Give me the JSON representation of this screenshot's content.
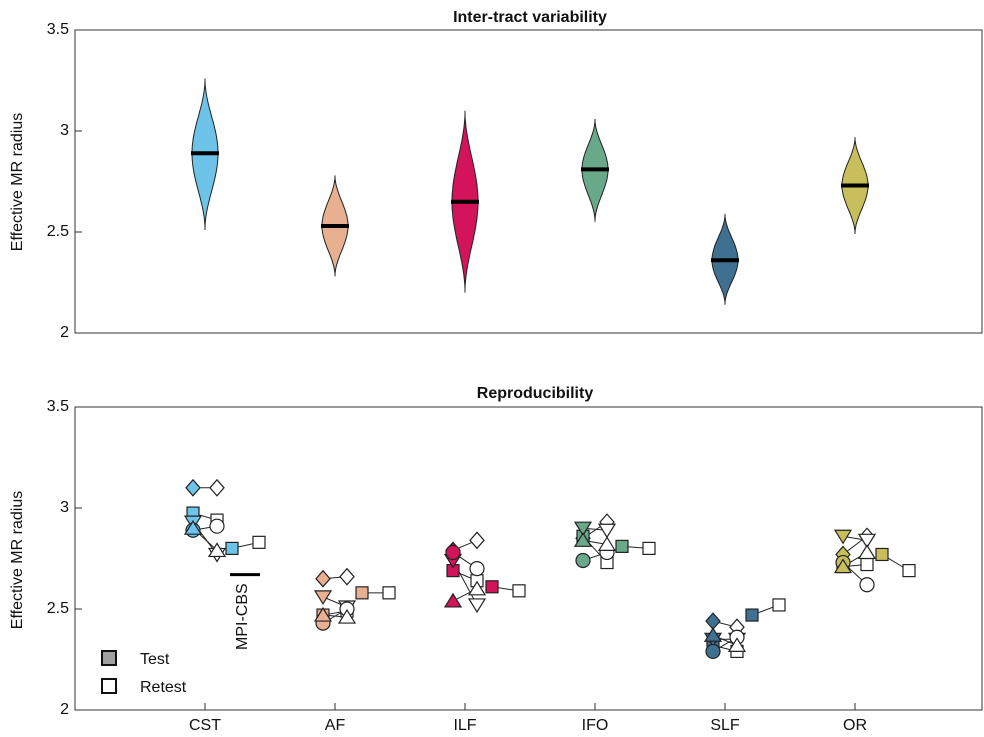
{
  "chart_data": [
    {
      "type": "violin",
      "title": "Inter-tract variability",
      "ylabel": "Effective MR radius",
      "ylim": [
        2,
        3.5
      ],
      "yticks": [
        2,
        2.5,
        3,
        3.5
      ],
      "series": [
        {
          "color": "#6ec3e8",
          "min": 2.51,
          "median": 2.89,
          "max": 3.26
        },
        {
          "color": "#e8b090",
          "min": 2.28,
          "median": 2.53,
          "max": 2.78
        },
        {
          "color": "#d4145a",
          "min": 2.2,
          "median": 2.65,
          "max": 3.1
        },
        {
          "color": "#6aa88a",
          "min": 2.55,
          "median": 2.81,
          "max": 3.06
        },
        {
          "color": "#3f6f91",
          "min": 2.14,
          "median": 2.36,
          "max": 2.59
        },
        {
          "color": "#c8bf5c",
          "min": 2.49,
          "median": 2.73,
          "max": 2.97
        }
      ]
    },
    {
      "type": "paired-scatter",
      "title": "Reproducibility",
      "ylabel": "Effective MR radius",
      "ylim": [
        2,
        3.5
      ],
      "yticks": [
        2,
        2.5,
        3,
        3.5
      ],
      "categories": [
        "CST",
        "AF",
        "ILF",
        "IFO",
        "SLF",
        "OR"
      ],
      "colors": [
        "#6ec3e8",
        "#e8b090",
        "#d4145a",
        "#6aa88a",
        "#3f6f91",
        "#c8bf5c"
      ],
      "subjects": [
        {
          "marker": "diamond",
          "test": [
            3.1,
            2.65,
            2.79,
            2.85,
            2.44,
            2.77
          ],
          "retest": [
            3.1,
            2.66,
            2.84,
            2.93,
            2.41,
            2.86
          ]
        },
        {
          "marker": "square",
          "test": [
            2.975,
            2.47,
            2.69,
            2.86,
            2.32,
            2.71
          ],
          "retest": [
            2.94,
            2.49,
            2.64,
            2.73,
            2.29,
            2.72
          ]
        },
        {
          "marker": "triangle-down",
          "test": [
            2.93,
            2.56,
            2.74,
            2.9,
            2.35,
            2.86
          ],
          "retest": [
            2.77,
            2.51,
            2.52,
            2.89,
            2.35,
            2.84
          ]
        },
        {
          "marker": "circle",
          "test": [
            2.89,
            2.43,
            2.78,
            2.74,
            2.29,
            2.73
          ],
          "retest": [
            2.91,
            2.5,
            2.7,
            2.78,
            2.36,
            2.62
          ]
        },
        {
          "marker": "triangle-up",
          "test": [
            2.9,
            2.47,
            2.54,
            2.84,
            2.37,
            2.71
          ],
          "retest": [
            2.79,
            2.46,
            2.6,
            2.82,
            2.32,
            2.78
          ]
        },
        {
          "marker": "square-far",
          "test": [
            2.8,
            2.58,
            2.61,
            2.81,
            2.47,
            2.77
          ],
          "retest": [
            2.83,
            2.58,
            2.59,
            2.8,
            2.52,
            2.69
          ]
        }
      ],
      "annotation": {
        "text": "MPI-CBS",
        "value": 2.67
      },
      "legend": [
        {
          "label": "Test",
          "fill": "#a0a0a0"
        },
        {
          "label": "Retest",
          "fill": "#ffffff"
        }
      ]
    }
  ]
}
